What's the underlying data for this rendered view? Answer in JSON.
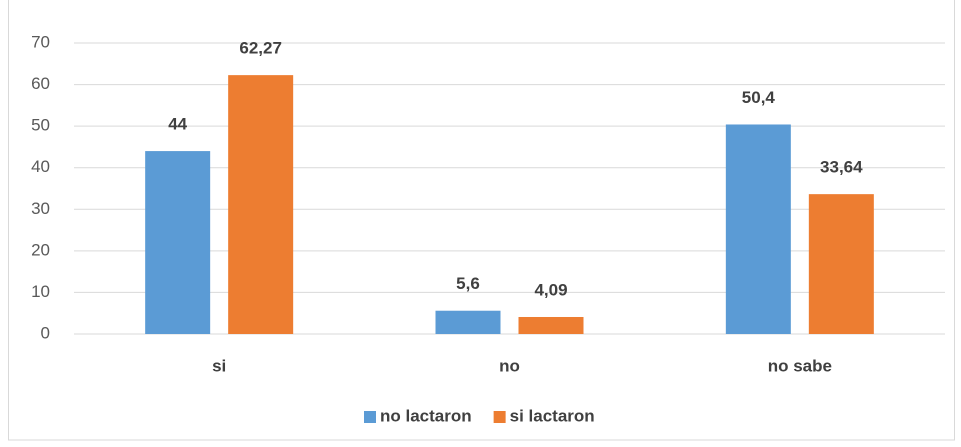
{
  "chart_data": {
    "type": "bar",
    "categories": [
      "si",
      "no",
      "no sabe"
    ],
    "series": [
      {
        "name": "no lactaron",
        "color": "#5b9bd5",
        "values": [
          44,
          5.6,
          50.4
        ],
        "value_labels": [
          "44",
          "5,6",
          "50,4"
        ]
      },
      {
        "name": "si lactaron",
        "color": "#ed7d31",
        "values": [
          62.27,
          4.09,
          33.64
        ],
        "value_labels": [
          "62,27",
          "4,09",
          "33,64"
        ]
      }
    ],
    "ylim": [
      0,
      70
    ],
    "yticks": [
      0,
      10,
      20,
      30,
      40,
      50,
      60,
      70
    ],
    "grid": true,
    "legend": "bottom"
  }
}
